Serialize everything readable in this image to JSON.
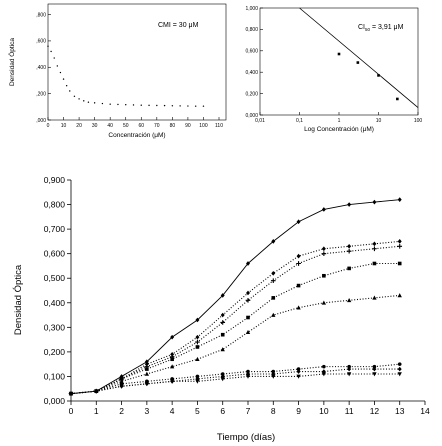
{
  "chart_data": [
    {
      "type": "scatter",
      "title": "",
      "xlabel": "Concentración (μM)",
      "ylabel": "Densidad Óptica",
      "annotation": "CMI = 30 μM",
      "xlim": [
        0,
        110
      ],
      "ylim": [
        0,
        0.8
      ],
      "xticks": [
        "0",
        "10",
        "20",
        "30",
        "40",
        "50",
        "60",
        "70",
        "80",
        "90",
        "100",
        "110"
      ],
      "yticks": [
        ",000",
        ",200",
        ",400",
        ",600",
        ",800"
      ],
      "grid": false,
      "series": [
        {
          "x": [
            0,
            2,
            4,
            6,
            8,
            10,
            12,
            14,
            17,
            20,
            23,
            26,
            30,
            35,
            40,
            45,
            50,
            55,
            60,
            65,
            70,
            75,
            80,
            85,
            90,
            95,
            100
          ],
          "values": [
            0.56,
            0.52,
            0.47,
            0.41,
            0.36,
            0.31,
            0.26,
            0.22,
            0.18,
            0.16,
            0.145,
            0.135,
            0.13,
            0.125,
            0.12,
            0.118,
            0.116,
            0.114,
            0.112,
            0.111,
            0.11,
            0.109,
            0.108,
            0.107,
            0.106,
            0.105,
            0.105
          ]
        }
      ]
    },
    {
      "type": "scatter",
      "title": "",
      "xlabel": "Log Concentración (μM)",
      "ylabel": "",
      "annotation_main": "CI",
      "annotation_sub": "50",
      "annotation_rest": " = 3,91 μM",
      "xscale": "log",
      "xlim": [
        0.01,
        100
      ],
      "ylim": [
        0,
        1
      ],
      "xticks": [
        "0,01",
        "0,1",
        "1",
        "10",
        "100"
      ],
      "yticks": [
        "0,000",
        "0,200",
        "0,400",
        "0,600",
        "0,800",
        "1,000"
      ],
      "grid": false,
      "points": {
        "x": [
          1,
          3,
          10,
          30
        ],
        "values": [
          0.57,
          0.49,
          0.37,
          0.15
        ]
      },
      "fit_line": {
        "x": [
          0.1,
          100
        ],
        "values": [
          1.0,
          0.07
        ]
      }
    },
    {
      "type": "line",
      "title": "",
      "xlabel": "Tiempo (días)",
      "ylabel": "Densidad Óptica",
      "xlim": [
        0,
        14
      ],
      "ylim": [
        0,
        0.9
      ],
      "xticks": [
        "0",
        "1",
        "2",
        "3",
        "4",
        "5",
        "6",
        "7",
        "8",
        "9",
        "10",
        "11",
        "12",
        "13",
        "14"
      ],
      "yticks": [
        "0,000",
        "0,100",
        "0,200",
        "0,300",
        "0,400",
        "0,500",
        "0,600",
        "0,700",
        "0,800",
        "0,900"
      ],
      "grid": false,
      "categories": [
        0,
        1,
        2,
        3,
        4,
        5,
        6,
        7,
        8,
        9,
        10,
        11,
        12,
        13
      ],
      "series": [
        {
          "marker": "diamond",
          "style": "solid",
          "values": [
            0.03,
            0.04,
            0.1,
            0.16,
            0.26,
            0.33,
            0.43,
            0.56,
            0.65,
            0.73,
            0.78,
            0.8,
            0.81,
            0.82
          ]
        },
        {
          "marker": "diamond",
          "style": "dotted",
          "values": [
            0.03,
            0.04,
            0.09,
            0.15,
            0.19,
            0.26,
            0.35,
            0.44,
            0.52,
            0.59,
            0.62,
            0.63,
            0.64,
            0.65
          ]
        },
        {
          "marker": "plus",
          "style": "dotted",
          "values": [
            0.03,
            0.04,
            0.09,
            0.14,
            0.18,
            0.24,
            0.32,
            0.41,
            0.49,
            0.56,
            0.6,
            0.61,
            0.62,
            0.63
          ]
        },
        {
          "marker": "square",
          "style": "dotted",
          "values": [
            0.03,
            0.04,
            0.09,
            0.13,
            0.17,
            0.22,
            0.27,
            0.34,
            0.42,
            0.47,
            0.51,
            0.54,
            0.56,
            0.56
          ]
        },
        {
          "marker": "triangle",
          "style": "dotted",
          "values": [
            0.03,
            0.04,
            0.08,
            0.11,
            0.14,
            0.17,
            0.21,
            0.28,
            0.35,
            0.38,
            0.4,
            0.41,
            0.42,
            0.43
          ]
        },
        {
          "marker": "circle",
          "style": "dotted",
          "values": [
            0.03,
            0.04,
            0.07,
            0.08,
            0.09,
            0.1,
            0.11,
            0.12,
            0.12,
            0.13,
            0.14,
            0.14,
            0.14,
            0.15
          ]
        },
        {
          "marker": "diamond",
          "style": "dotted",
          "values": [
            0.03,
            0.04,
            0.06,
            0.07,
            0.08,
            0.09,
            0.1,
            0.11,
            0.11,
            0.12,
            0.12,
            0.13,
            0.13,
            0.13
          ]
        },
        {
          "marker": "triangle-down",
          "style": "dotted",
          "values": [
            0.03,
            0.04,
            0.06,
            0.07,
            0.08,
            0.08,
            0.09,
            0.1,
            0.1,
            0.1,
            0.11,
            0.11,
            0.11,
            0.11
          ]
        }
      ]
    }
  ]
}
